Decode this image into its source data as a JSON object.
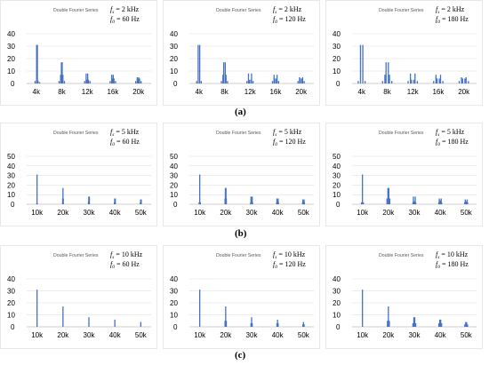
{
  "captions": [
    "(a)",
    "(b)",
    "(c)"
  ],
  "colors": {
    "bar": "#4472c4",
    "grid": "#d9d9d9",
    "text": "#000000"
  },
  "chart_data": [
    {
      "type": "bar",
      "title": "Double Fourier Series",
      "fs": "= 2 kHz",
      "f0": "= 60 Hz",
      "ylim": [
        0,
        40
      ],
      "yticks": [
        "0",
        "10",
        "20",
        "30",
        "40"
      ],
      "xlim": [
        2.5,
        22
      ],
      "xticks": [
        {
          "v": 4,
          "l": "4k"
        },
        {
          "v": 8,
          "l": "8k"
        },
        {
          "v": 12,
          "l": "12k"
        },
        {
          "v": 16,
          "l": "16k"
        },
        {
          "v": 20,
          "l": "20k"
        }
      ],
      "x": [
        3.82,
        4.06,
        4.18,
        4.3,
        4.54,
        7.58,
        7.82,
        7.94,
        8.06,
        8.18,
        8.42,
        11.58,
        11.82,
        11.94,
        12.06,
        12.18,
        12.42,
        15.58,
        15.82,
        15.94,
        16.06,
        16.18,
        16.42,
        19.58,
        19.82,
        19.94,
        20.06,
        20.18,
        20.42
      ],
      "values": [
        2,
        31,
        31,
        2,
        1,
        2,
        7,
        17,
        17,
        7,
        2,
        2,
        8,
        3,
        8,
        3,
        2,
        2,
        7,
        4,
        7,
        4,
        2,
        2,
        5,
        4,
        5,
        4,
        2
      ]
    },
    {
      "type": "bar",
      "title": "Double Fourier Series",
      "fs": "= 2 kHz",
      "f0": "= 120 Hz",
      "ylim": [
        0,
        40
      ],
      "yticks": [
        "0",
        "10",
        "20",
        "30",
        "40"
      ],
      "xlim": [
        2.5,
        22
      ],
      "xticks": [
        {
          "v": 4,
          "l": "4k"
        },
        {
          "v": 8,
          "l": "8k"
        },
        {
          "v": 12,
          "l": "12k"
        },
        {
          "v": 16,
          "l": "16k"
        },
        {
          "v": 20,
          "l": "20k"
        }
      ],
      "x": [
        3.64,
        3.88,
        4.12,
        4.36,
        7.52,
        7.76,
        7.88,
        8.12,
        8.24,
        8.48,
        11.52,
        11.76,
        11.88,
        12.12,
        12.24,
        12.48,
        15.52,
        15.76,
        15.88,
        16.12,
        16.24,
        16.48,
        19.52,
        19.76,
        19.88,
        20.12,
        20.24,
        20.48
      ],
      "values": [
        2,
        31,
        31,
        2,
        2,
        7,
        17,
        17,
        7,
        2,
        2,
        8,
        3,
        3,
        8,
        2,
        2,
        7,
        4,
        4,
        7,
        2,
        2,
        5,
        4,
        4,
        5,
        2
      ]
    },
    {
      "type": "bar",
      "title": "Double Fourier Series",
      "fs": "= 2 kHz",
      "f0": "= 180 Hz",
      "ylim": [
        0,
        40
      ],
      "yticks": [
        "0",
        "10",
        "20",
        "30",
        "40"
      ],
      "xlim": [
        2.5,
        22
      ],
      "xticks": [
        {
          "v": 4,
          "l": "4k"
        },
        {
          "v": 8,
          "l": "8k"
        },
        {
          "v": 12,
          "l": "12k"
        },
        {
          "v": 16,
          "l": "16k"
        },
        {
          "v": 20,
          "l": "20k"
        }
      ],
      "x": [
        3.46,
        3.82,
        4.18,
        4.54,
        7.28,
        7.64,
        7.82,
        8.18,
        8.36,
        8.72,
        11.28,
        11.64,
        11.82,
        12.18,
        12.36,
        12.72,
        15.28,
        15.64,
        15.82,
        16.18,
        16.36,
        16.72,
        19.28,
        19.64,
        19.82,
        20.18,
        20.36,
        20.72
      ],
      "values": [
        2,
        31,
        31,
        2,
        2,
        7,
        17,
        17,
        7,
        2,
        2,
        8,
        3,
        3,
        8,
        2,
        2,
        7,
        4,
        4,
        7,
        2,
        2,
        5,
        4,
        4,
        5,
        2
      ]
    },
    {
      "type": "bar",
      "title": "Double Fourier Series",
      "fs": "= 5 kHz",
      "f0": "= 60 Hz",
      "ylim": [
        0,
        50
      ],
      "yticks": [
        "0",
        "10",
        "20",
        "30",
        "40",
        "50"
      ],
      "xlim": [
        6,
        54
      ],
      "xticks": [
        {
          "v": 10,
          "l": "10k"
        },
        {
          "v": 20,
          "l": "20k"
        },
        {
          "v": 30,
          "l": "30k"
        },
        {
          "v": 40,
          "l": "40k"
        },
        {
          "v": 50,
          "l": "50k"
        }
      ],
      "x": [
        9.88,
        10,
        10.12,
        19.88,
        20,
        20.12,
        29.82,
        29.94,
        30.06,
        30.18,
        39.82,
        39.94,
        40.06,
        40.18,
        49.82,
        49.94,
        50.06,
        50.18
      ],
      "values": [
        1,
        31,
        1,
        6,
        17,
        6,
        3,
        8,
        3,
        8,
        2,
        6,
        4,
        6,
        2,
        5,
        3,
        5
      ]
    },
    {
      "type": "bar",
      "title": "Double Fourier Series",
      "fs": "= 5 kHz",
      "f0": "= 120 Hz",
      "ylim": [
        0,
        50
      ],
      "yticks": [
        "0",
        "10",
        "20",
        "30",
        "40",
        "50"
      ],
      "xlim": [
        6,
        54
      ],
      "xticks": [
        {
          "v": 10,
          "l": "10k"
        },
        {
          "v": 20,
          "l": "20k"
        },
        {
          "v": 30,
          "l": "30k"
        },
        {
          "v": 40,
          "l": "40k"
        },
        {
          "v": 50,
          "l": "50k"
        }
      ],
      "x": [
        9.76,
        10,
        10.24,
        19.76,
        19.88,
        20.12,
        20.24,
        29.64,
        29.76,
        29.88,
        30.12,
        30.24,
        30.36,
        39.64,
        39.76,
        39.88,
        40.12,
        40.24,
        40.36,
        49.64,
        49.76,
        49.88,
        50.12,
        50.24,
        50.36
      ],
      "values": [
        2,
        31,
        2,
        6,
        17,
        17,
        6,
        2,
        8,
        3,
        3,
        8,
        2,
        2,
        6,
        4,
        4,
        6,
        2,
        2,
        5,
        3,
        3,
        5,
        2
      ]
    },
    {
      "type": "bar",
      "title": "Double Fourier Series",
      "fs": "= 5 kHz",
      "f0": "= 180 Hz",
      "ylim": [
        0,
        50
      ],
      "yticks": [
        "0",
        "10",
        "20",
        "30",
        "40",
        "50"
      ],
      "xlim": [
        6,
        54
      ],
      "xticks": [
        {
          "v": 10,
          "l": "10k"
        },
        {
          "v": 20,
          "l": "20k"
        },
        {
          "v": 30,
          "l": "30k"
        },
        {
          "v": 40,
          "l": "40k"
        },
        {
          "v": 50,
          "l": "50k"
        }
      ],
      "x": [
        9.64,
        10,
        10.36,
        19.46,
        19.82,
        20.18,
        20.54,
        29.46,
        29.64,
        29.82,
        30.18,
        30.36,
        30.54,
        39.46,
        39.64,
        39.82,
        40.18,
        40.36,
        40.54,
        49.46,
        49.64,
        49.82,
        50.18,
        50.36,
        50.54
      ],
      "values": [
        2,
        31,
        2,
        6,
        17,
        17,
        6,
        2,
        8,
        3,
        3,
        8,
        2,
        2,
        6,
        4,
        4,
        6,
        2,
        2,
        5,
        3,
        3,
        5,
        2
      ]
    },
    {
      "type": "bar",
      "title": "Double Fourier Series",
      "fs": "= 10 kHz",
      "f0": "= 60 Hz",
      "ylim": [
        0,
        40
      ],
      "yticks": [
        "0",
        "10",
        "20",
        "30",
        "40"
      ],
      "xlim": [
        6,
        54
      ],
      "xticks": [
        {
          "v": 10,
          "l": "10k"
        },
        {
          "v": 20,
          "l": "20k"
        },
        {
          "v": 30,
          "l": "30k"
        },
        {
          "v": 40,
          "l": "40k"
        },
        {
          "v": 50,
          "l": "50k"
        }
      ],
      "x": [
        10,
        20,
        30,
        40,
        50
      ],
      "values": [
        31,
        17,
        8,
        6,
        4
      ]
    },
    {
      "type": "bar",
      "title": "Double Fourier Series",
      "fs": "= 10 kHz",
      "f0": "= 120 Hz",
      "ylim": [
        0,
        40
      ],
      "yticks": [
        "0",
        "10",
        "20",
        "30",
        "40"
      ],
      "xlim": [
        6,
        54
      ],
      "xticks": [
        {
          "v": 10,
          "l": "10k"
        },
        {
          "v": 20,
          "l": "20k"
        },
        {
          "v": 30,
          "l": "30k"
        },
        {
          "v": 40,
          "l": "40k"
        },
        {
          "v": 50,
          "l": "50k"
        }
      ],
      "x": [
        10,
        19.76,
        20,
        20.24,
        29.76,
        30,
        30.24,
        39.76,
        40,
        40.24,
        49.76,
        50,
        50.24
      ],
      "values": [
        31,
        5,
        17,
        5,
        3,
        8,
        3,
        3,
        6,
        3,
        2,
        4,
        2
      ]
    },
    {
      "type": "bar",
      "title": "Double Fourier Series",
      "fs": "= 10 kHz",
      "f0": "= 180 Hz",
      "ylim": [
        0,
        40
      ],
      "yticks": [
        "0",
        "10",
        "20",
        "30",
        "40"
      ],
      "xlim": [
        6,
        54
      ],
      "xticks": [
        {
          "v": 10,
          "l": "10k"
        },
        {
          "v": 20,
          "l": "20k"
        },
        {
          "v": 30,
          "l": "30k"
        },
        {
          "v": 40,
          "l": "40k"
        },
        {
          "v": 50,
          "l": "50k"
        }
      ],
      "x": [
        10,
        19.64,
        20,
        20.36,
        29.46,
        29.82,
        30,
        30.18,
        30.54,
        39.46,
        39.82,
        40,
        40.18,
        40.54,
        49.46,
        49.82,
        50,
        50.18,
        50.54
      ],
      "values": [
        31,
        5,
        17,
        5,
        3,
        8,
        3,
        8,
        3,
        3,
        6,
        3,
        6,
        3,
        2,
        4,
        2,
        4,
        2
      ]
    }
  ]
}
